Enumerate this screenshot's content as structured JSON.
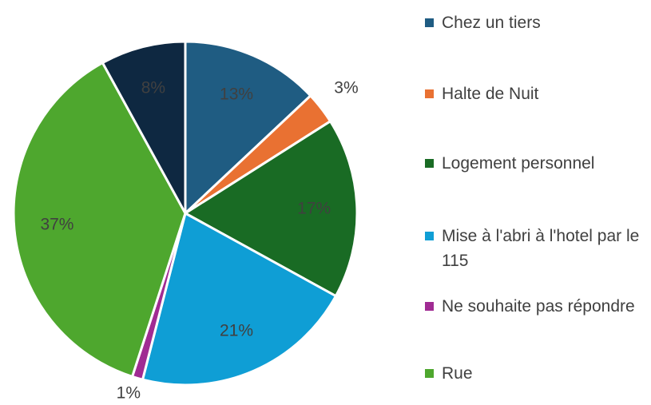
{
  "chart_data": {
    "type": "pie",
    "categories": [
      "Chez un tiers",
      "Halte de Nuit",
      "Logement personnel",
      "Mise à l'abri à l'hotel par le 115",
      "Ne souhaite pas répondre",
      "Rue",
      null
    ],
    "values": [
      13,
      3,
      17,
      21,
      1,
      37,
      8
    ],
    "value_labels": [
      "13%",
      "3%",
      "17%",
      "21%",
      "1%",
      "37%",
      "8%"
    ],
    "colors": [
      "#1f5c82",
      "#e97132",
      "#196b24",
      "#0f9ed5",
      "#a02b93",
      "#4ea72e",
      "#0e2841"
    ],
    "legend": "right"
  }
}
